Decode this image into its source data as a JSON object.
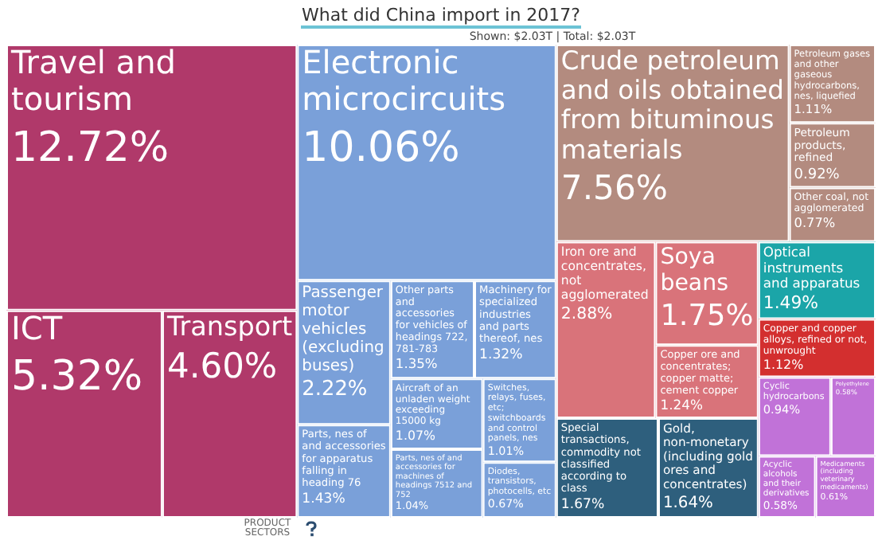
{
  "chart_data": {
    "type": "other",
    "title": "What did China import in 2017?",
    "annotations": [
      "Shown: $2.03T | Total: $2.03T",
      "PRODUCT SECTORS"
    ],
    "categories": [
      "Travel and tourism",
      "ICT",
      "Transport",
      "Electronic microcircuits",
      "Passenger motor vehicles (excluding buses)",
      "Parts, nes of and accessories for apparatus falling in heading 76",
      "Other parts and accessories for vehicles of headings 722, 781-783",
      "Machinery for specialized industries and parts thereof, nes",
      "Aircraft of an unladen weight exceeding 15000 kg",
      "Parts, nes of and accessories for machines of headings 7512 and 752",
      "Switches, relays, fuses, etc; switchboards and control panels, nes",
      "Diodes, transistors, photocells, etc",
      "Crude petroleum and oils obtained from bituminous materials",
      "Petroleum gases and other gaseous hydrocarbons, nes, liquefied",
      "Petroleum products, refined",
      "Other coal, not agglomerated",
      "Iron ore and concentrates, not agglomerated",
      "Soya beans",
      "Copper ore and concentrates; copper matte; cement copper",
      "Special transactions, commodity not classified according to class",
      "Gold, non-monetary (including gold ores and concentrates)",
      "Optical instruments and apparatus",
      "Copper and copper alloys, refined or not, unwrought",
      "Cyclic hydrocarbons",
      "Polyethylene",
      "Acyclic alcohols and their derivatives",
      "Medicaments (including veterinary medicaments)"
    ],
    "values": [
      12.72,
      5.32,
      4.6,
      10.06,
      2.22,
      1.43,
      1.35,
      1.32,
      1.07,
      1.04,
      1.01,
      0.67,
      7.56,
      1.11,
      0.92,
      0.77,
      2.88,
      1.75,
      1.24,
      1.67,
      1.64,
      1.49,
      1.12,
      0.94,
      0.58,
      0.58,
      0.61
    ],
    "value_labels": [
      "12.72%",
      "5.32%",
      "4.60%",
      "10.06%",
      "2.22%",
      "1.43%",
      "1.35%",
      "1.32%",
      "1.07%",
      "1.04%",
      "1.01%",
      "0.67%",
      "7.56%",
      "1.11%",
      "0.92%",
      "0.77%",
      "2.88%",
      "1.75%",
      "1.24%",
      "1.67%",
      "1.64%",
      "1.49%",
      "1.12%",
      "0.94%",
      "0.58%",
      "0.58%",
      "0.61%"
    ],
    "colors": [
      "#b0396a",
      "#b0396a",
      "#b0396a",
      "#7aa0d9",
      "#7aa0d9",
      "#7aa0d9",
      "#7aa0d9",
      "#7aa0d9",
      "#7aa0d9",
      "#7aa0d9",
      "#7aa0d9",
      "#7aa0d9",
      "#b38b7f",
      "#b38b7f",
      "#b38b7f",
      "#b38b7f",
      "#d9737a",
      "#d9737a",
      "#d9737a",
      "#2e5f7d",
      "#2e5f7d",
      "#1ba5a8",
      "#d32f2f",
      "#c172d8",
      "#c172d8",
      "#c172d8",
      "#c172d8"
    ]
  }
}
